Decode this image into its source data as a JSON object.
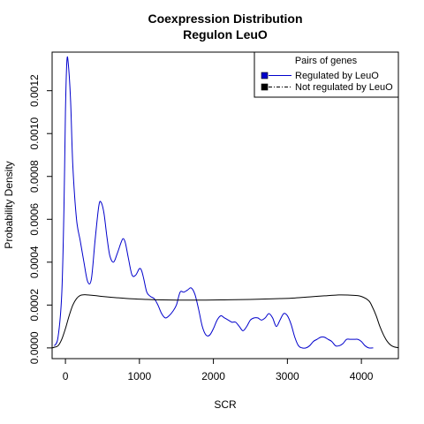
{
  "chart_data": {
    "type": "line",
    "title": "Coexpression Distribution",
    "subtitle": "Regulon LeuO",
    "xlabel": "SCR",
    "ylabel": "Probability Density",
    "xlim": [
      -180,
      4500
    ],
    "ylim": [
      -5e-05,
      0.00138
    ],
    "x_ticks": [
      0,
      1000,
      2000,
      3000,
      4000
    ],
    "y_ticks": [
      0.0,
      0.0002,
      0.0004,
      0.0006,
      0.0008,
      0.001,
      0.0012
    ],
    "y_tick_labels": [
      "0.0000",
      "0.0002",
      "0.0004",
      "0.0006",
      "0.0008",
      "0.0010",
      "0.0012"
    ],
    "grid": false,
    "legend": {
      "title": "Pairs of genes",
      "placement": "top-right",
      "entries": [
        "Regulated by  LeuO",
        "Not regulated by  LeuO"
      ]
    },
    "series": [
      {
        "name": "Regulated by  LeuO",
        "color": "#0000cc",
        "line_style": "solid",
        "x": [
          -150,
          -100,
          -50,
          -20,
          0,
          20,
          40,
          70,
          100,
          150,
          200,
          250,
          300,
          350,
          400,
          450,
          480,
          520,
          560,
          600,
          650,
          700,
          750,
          780,
          810,
          850,
          900,
          950,
          1000,
          1030,
          1060,
          1100,
          1150,
          1200,
          1250,
          1300,
          1350,
          1400,
          1450,
          1500,
          1550,
          1600,
          1650,
          1700,
          1750,
          1800,
          1850,
          1900,
          1950,
          2000,
          2050,
          2100,
          2150,
          2200,
          2250,
          2300,
          2350,
          2400,
          2450,
          2500,
          2550,
          2600,
          2650,
          2700,
          2750,
          2800,
          2850,
          2900,
          2950,
          3000,
          3050,
          3100,
          3150,
          3200,
          3250,
          3300,
          3350,
          3400,
          3450,
          3500,
          3550,
          3600,
          3650,
          3700,
          3750,
          3800,
          3850,
          3900,
          3950,
          4000,
          4050,
          4100,
          4160
        ],
        "y": [
          1e-05,
          5e-05,
          0.00025,
          0.00065,
          0.0011,
          0.00134,
          0.00132,
          0.00115,
          0.00085,
          0.0006,
          0.0005,
          0.0004,
          0.00031,
          0.00032,
          0.0005,
          0.00066,
          0.00068,
          0.00063,
          0.00052,
          0.00043,
          0.0004,
          0.00044,
          0.00049,
          0.00051,
          0.00049,
          0.00042,
          0.00034,
          0.00034,
          0.00037,
          0.00036,
          0.00032,
          0.00026,
          0.00024,
          0.00023,
          0.0002,
          0.00016,
          0.00014,
          0.00015,
          0.00017,
          0.0002,
          0.00026,
          0.00026,
          0.00027,
          0.00028,
          0.00025,
          0.00018,
          0.0001,
          6e-05,
          6e-05,
          9e-05,
          0.00013,
          0.00015,
          0.00014,
          0.00013,
          0.00012,
          0.00012,
          0.0001,
          8e-05,
          0.0001,
          0.00013,
          0.00014,
          0.00014,
          0.00013,
          0.00014,
          0.00016,
          0.00014,
          0.0001,
          0.00013,
          0.00016,
          0.00015,
          0.00011,
          5e-05,
          1e-05,
          0.0,
          0.0,
          1e-05,
          3e-05,
          4e-05,
          5e-05,
          5e-05,
          4e-05,
          3e-05,
          1e-05,
          1e-05,
          2e-05,
          4e-05,
          4e-05,
          4e-05,
          4e-05,
          3e-05,
          1e-05,
          0.0,
          0.0
        ]
      },
      {
        "name": "Not regulated by  LeuO",
        "color": "#000000",
        "line_style": "solid",
        "x": [
          -180,
          -150,
          -100,
          -50,
          0,
          50,
          100,
          150,
          200,
          250,
          300,
          400,
          500,
          700,
          900,
          1100,
          1300,
          1500,
          1700,
          1900,
          2100,
          2300,
          2500,
          2700,
          2900,
          3100,
          3300,
          3500,
          3700,
          3900,
          4000,
          4100,
          4150,
          4200,
          4250,
          4300,
          4350,
          4400,
          4450,
          4500
        ],
        "y": [
          0.0,
          3e-06,
          1e-05,
          4e-05,
          9e-05,
          0.00015,
          0.0002,
          0.00023,
          0.000245,
          0.000248,
          0.000247,
          0.000244,
          0.00024,
          0.000234,
          0.000229,
          0.000226,
          0.000224,
          0.000223,
          0.000223,
          0.000223,
          0.000224,
          0.000225,
          0.000226,
          0.000228,
          0.00023,
          0.000233,
          0.000238,
          0.000243,
          0.000247,
          0.000245,
          0.00024,
          0.00022,
          0.00019,
          0.00015,
          0.0001,
          6e-05,
          3e-05,
          1.2e-05,
          4e-06,
          1e-06
        ]
      }
    ]
  }
}
